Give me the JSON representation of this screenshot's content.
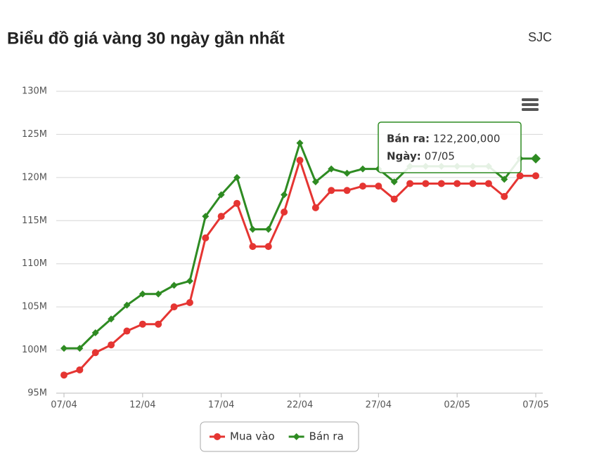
{
  "header": {
    "title": "Biểu đồ giá vàng 30 ngày gần nhất",
    "source": "SJC"
  },
  "chart_data": {
    "type": "line",
    "categories": [
      "07/04",
      null,
      null,
      null,
      null,
      "12/04",
      null,
      null,
      null,
      null,
      "17/04",
      null,
      null,
      null,
      null,
      "22/04",
      null,
      null,
      null,
      null,
      "27/04",
      null,
      null,
      null,
      null,
      "02/05",
      null,
      null,
      null,
      null,
      "07/05"
    ],
    "series": [
      {
        "name": "Mua vào",
        "color": "#e53532",
        "marker": "circle",
        "values": [
          97.1,
          97.7,
          99.7,
          100.6,
          102.2,
          103.0,
          103.0,
          105.0,
          105.5,
          113.0,
          115.5,
          117.0,
          112.0,
          112.0,
          116.0,
          122.0,
          116.5,
          118.5,
          118.5,
          119.0,
          119.0,
          117.5,
          119.3,
          119.3,
          119.3,
          119.3,
          119.3,
          119.3,
          117.8,
          120.2,
          120.2
        ]
      },
      {
        "name": "Bán ra",
        "color": "#2e8b22",
        "marker": "diamond",
        "values": [
          100.2,
          100.2,
          102.0,
          103.6,
          105.2,
          106.5,
          106.5,
          107.5,
          108.0,
          115.5,
          118.0,
          120.0,
          114.0,
          114.0,
          118.0,
          124.0,
          119.5,
          121.0,
          120.5,
          121.0,
          121.0,
          119.5,
          121.3,
          121.3,
          121.3,
          121.3,
          121.3,
          121.3,
          119.8,
          122.2,
          122.2
        ]
      }
    ],
    "ylim": [
      95,
      130
    ],
    "yticks": [
      {
        "value": 95,
        "label": "95M"
      },
      {
        "value": 100,
        "label": "100M"
      },
      {
        "value": 105,
        "label": "105M"
      },
      {
        "value": 110,
        "label": "110M"
      },
      {
        "value": 115,
        "label": "115M"
      },
      {
        "value": 120,
        "label": "120M"
      },
      {
        "value": 125,
        "label": "125M"
      },
      {
        "value": 130,
        "label": "130M"
      }
    ],
    "grid": true,
    "legend": "bottom",
    "tooltip": {
      "lines": [
        {
          "label": "Bán ra:",
          "value": "122,200,000"
        },
        {
          "label": "Ngày:",
          "value": "07/05"
        }
      ]
    }
  }
}
